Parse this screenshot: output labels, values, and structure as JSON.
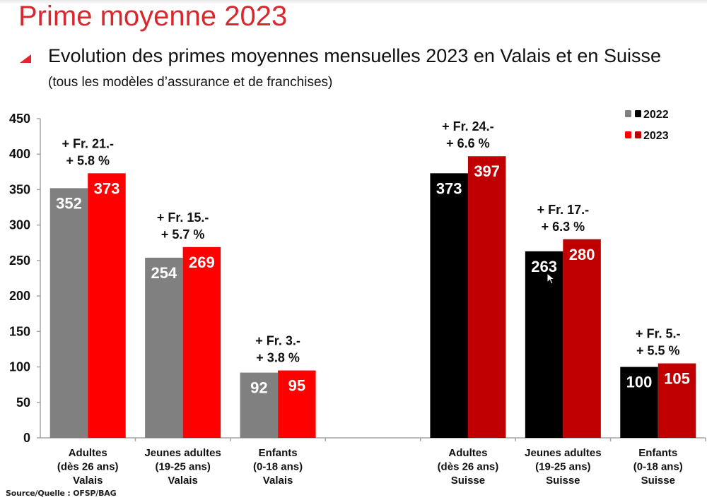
{
  "slide": {
    "title": "Prime moyenne 2023",
    "subtitle_main": "Evolution des primes moyennes mensuelles 2023 en Valais et en Suisse",
    "subtitle_small": "(tous les modèles d’assurance et de franchises)",
    "source": "Source/Quelle : OFSP/BAG"
  },
  "colors": {
    "title": "#d7282f",
    "valais_2022": "#808080",
    "valais_2023": "#ff0000",
    "suisse_2022": "#000000",
    "suisse_2023": "#c00000"
  },
  "chart_data": {
    "type": "bar",
    "title": "Evolution des primes moyennes mensuelles 2023 en Valais et en Suisse",
    "xlabel": "",
    "ylabel": "",
    "ylim": [
      0,
      450
    ],
    "yticks": [
      0,
      50,
      100,
      150,
      200,
      250,
      300,
      350,
      400,
      450
    ],
    "grid": false,
    "legend": {
      "position": "top-right",
      "entries": [
        {
          "label": "2022",
          "colors": [
            "#808080",
            "#000000"
          ]
        },
        {
          "label": "2023",
          "colors": [
            "#ff0000",
            "#c00000"
          ]
        }
      ]
    },
    "categories": [
      {
        "lines": [
          "Adultes",
          "(dès 26 ans)",
          "Valais"
        ],
        "region": "valais",
        "v2022": 352,
        "v2023": 373,
        "change_fr": "+ Fr. 21.-",
        "change_pct": "+ 5.8 %"
      },
      {
        "lines": [
          "Jeunes adultes",
          "(19-25 ans)",
          "Valais"
        ],
        "region": "valais",
        "v2022": 254,
        "v2023": 269,
        "change_fr": "+ Fr. 15.-",
        "change_pct": "+ 5.7 %"
      },
      {
        "lines": [
          "Enfants",
          "(0-18 ans)",
          "Valais"
        ],
        "region": "valais",
        "v2022": 92,
        "v2023": 95,
        "change_fr": "+ Fr. 3.-",
        "change_pct": "+ 3.8 %"
      },
      {
        "lines": [
          "",
          "",
          ""
        ],
        "region": "empty",
        "v2022": null,
        "v2023": null,
        "change_fr": "",
        "change_pct": ""
      },
      {
        "lines": [
          "Adultes",
          "(dès 26 ans)",
          "Suisse"
        ],
        "region": "suisse",
        "v2022": 373,
        "v2023": 397,
        "change_fr": "+ Fr. 24.-",
        "change_pct": "+ 6.6 %"
      },
      {
        "lines": [
          "Jeunes adultes",
          "(19-25 ans)",
          "Suisse"
        ],
        "region": "suisse",
        "v2022": 263,
        "v2023": 280,
        "change_fr": "+ Fr. 17.-",
        "change_pct": "+ 6.3 %"
      },
      {
        "lines": [
          "Enfants",
          "(0-18 ans)",
          "Suisse"
        ],
        "region": "suisse",
        "v2022": 100,
        "v2023": 105,
        "change_fr": "+ Fr. 5.-",
        "change_pct": "+ 5.5 %"
      }
    ],
    "series": [
      {
        "name": "2022",
        "values": [
          352,
          254,
          92,
          null,
          373,
          263,
          100
        ]
      },
      {
        "name": "2023",
        "values": [
          373,
          269,
          95,
          null,
          397,
          280,
          105
        ]
      }
    ]
  }
}
